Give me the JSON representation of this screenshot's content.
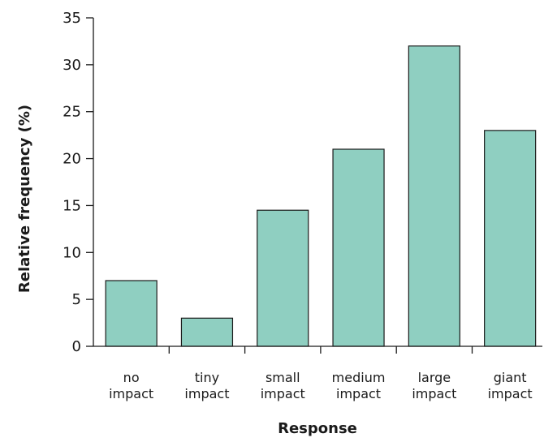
{
  "chart_data": {
    "type": "bar",
    "categories": [
      [
        "no",
        "impact"
      ],
      [
        "tiny",
        "impact"
      ],
      [
        "small",
        "impact"
      ],
      [
        "medium",
        "impact"
      ],
      [
        "large",
        "impact"
      ],
      [
        "giant",
        "impact"
      ]
    ],
    "values": [
      7,
      3,
      14.5,
      21,
      32,
      23
    ],
    "xlabel": "Response",
    "ylabel": "Relative frequency (%)",
    "ylim": [
      0,
      35
    ],
    "yticks": [
      0,
      5,
      10,
      15,
      20,
      25,
      30,
      35
    ],
    "grid": false,
    "bar_color": "#8fcfc1"
  }
}
